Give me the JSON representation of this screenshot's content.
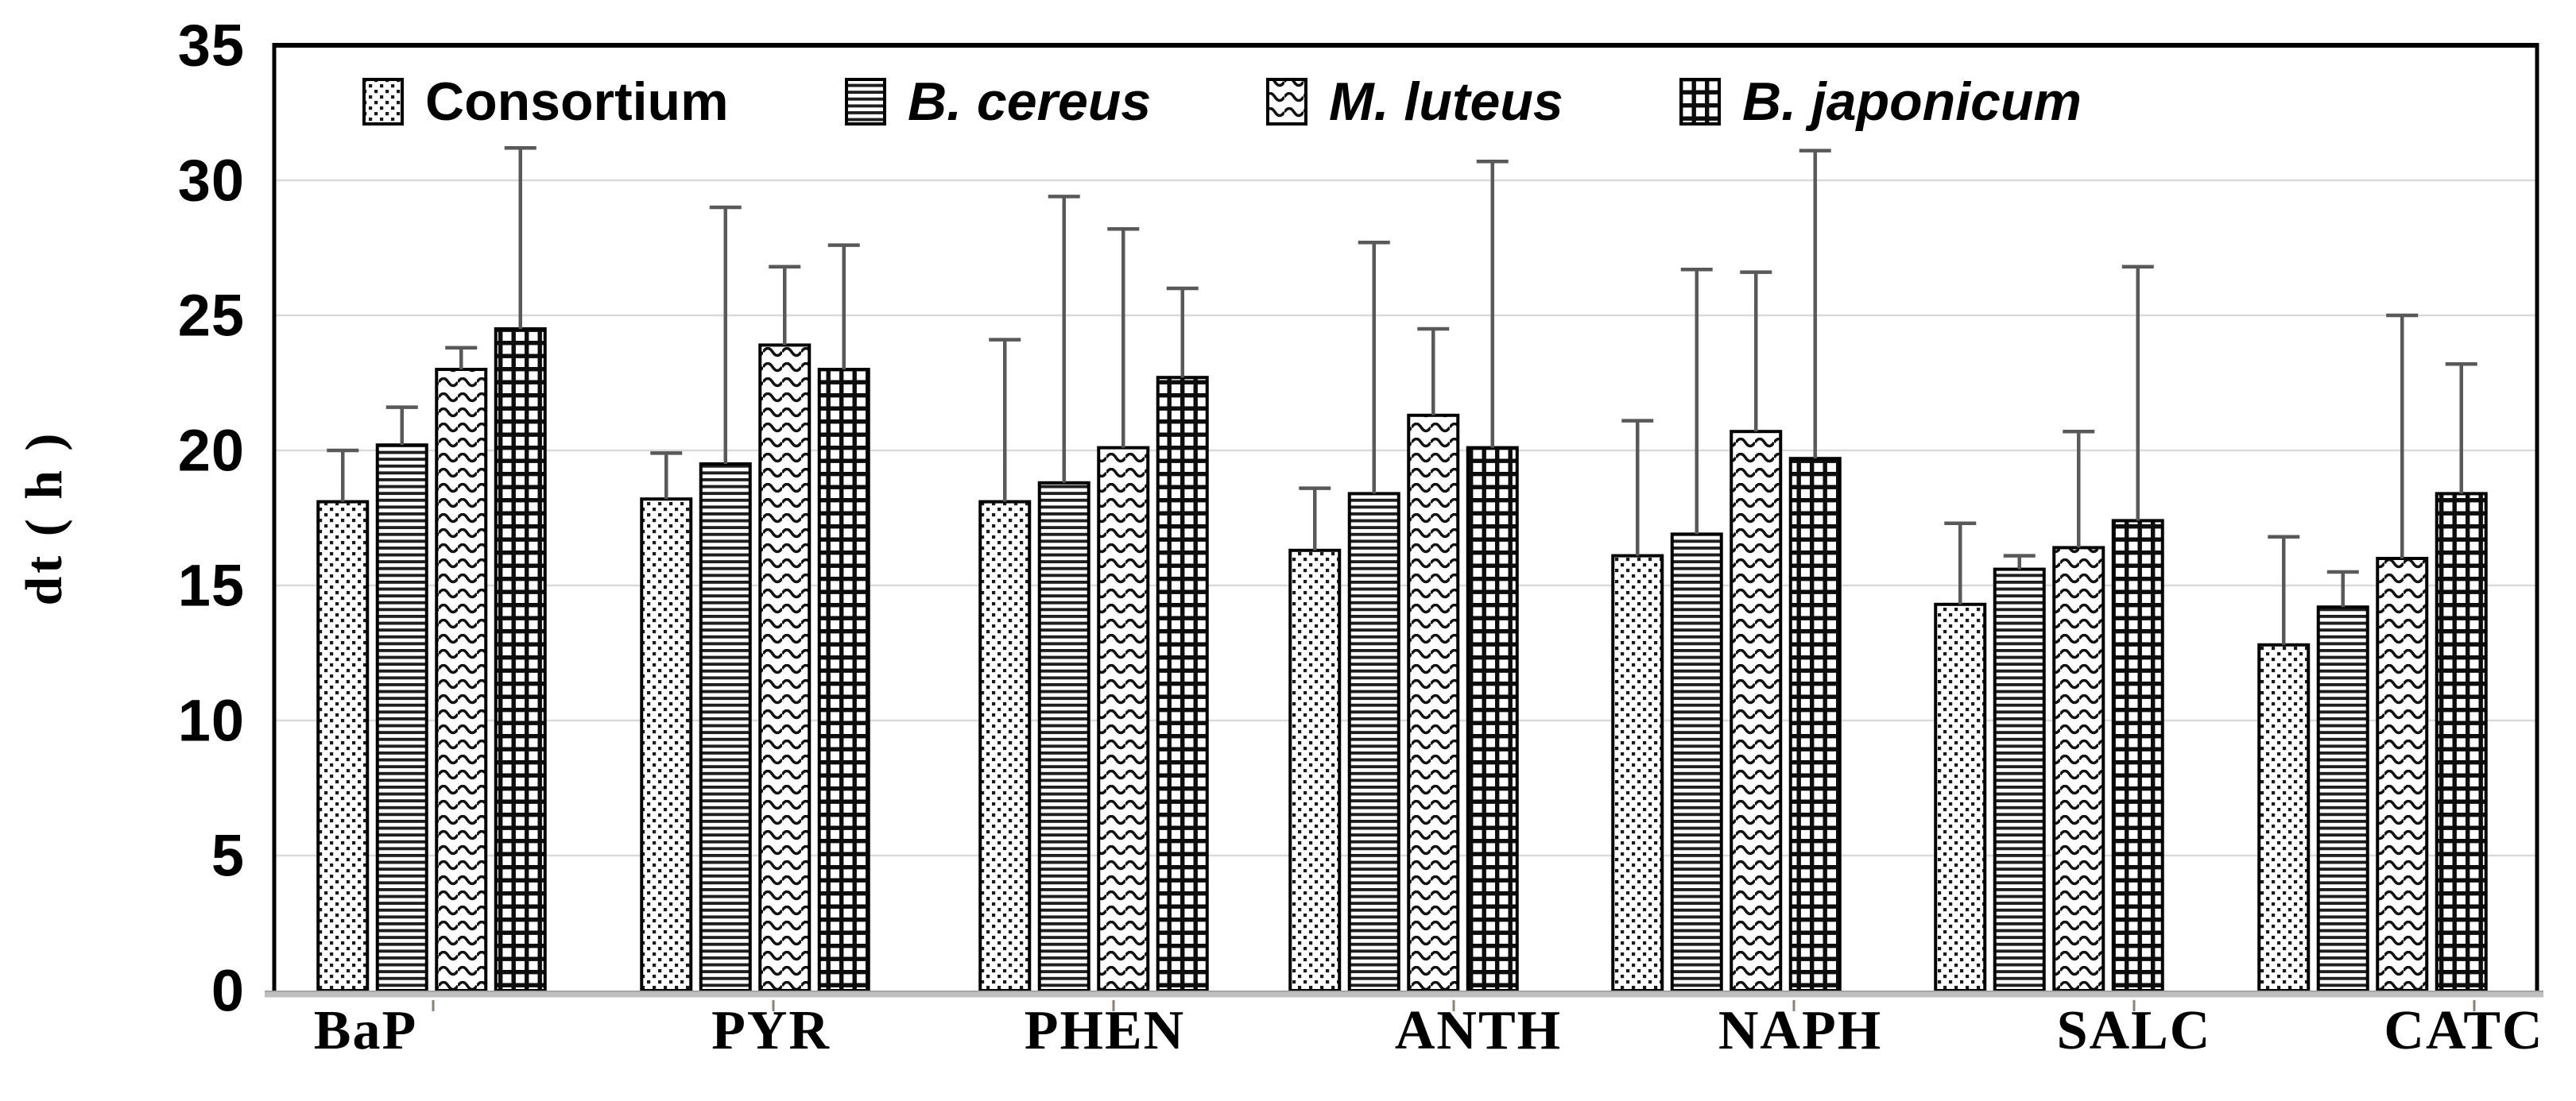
{
  "y_axis": {
    "title": "dt ( h )",
    "ticks": [
      "0",
      "5",
      "10",
      "15",
      "20",
      "25",
      "30",
      "35"
    ],
    "min": 0,
    "max": 35,
    "step": 5
  },
  "legend": [
    {
      "label": "Consortium",
      "italic": false,
      "pattern": "dots"
    },
    {
      "label": "B. cereus",
      "italic": true,
      "pattern": "hlines"
    },
    {
      "label": "M. luteus",
      "italic": true,
      "pattern": "waves"
    },
    {
      "label": "B. japonicum",
      "italic": true,
      "pattern": "grid"
    }
  ],
  "colors": {
    "bar_outline": "#000000",
    "error_bar": "#595959",
    "gridline": "#d9d9d9",
    "axis_border": "#000000",
    "baseline": "#bfbfbf",
    "baseline_edge": "#999999",
    "tick_mark": "#8c8274"
  },
  "chart_data": {
    "type": "bar",
    "title": "",
    "xlabel": "",
    "ylabel": "dt ( h )",
    "ylim": [
      0,
      35
    ],
    "grid": "horizontal",
    "legend_position": "top-inside",
    "error_bars": "upper-only",
    "categories": [
      "BaP",
      "PYR",
      "PHEN",
      "ANTH",
      "NAPH",
      "SALC",
      "CATC"
    ],
    "series": [
      {
        "name": "Consortium",
        "pattern": "dots",
        "values": [
          18.1,
          18.2,
          18.1,
          16.3,
          16.1,
          14.3,
          12.8
        ],
        "errors": [
          1.9,
          1.7,
          6.0,
          2.3,
          5.0,
          3.0,
          4.0
        ]
      },
      {
        "name": "B. cereus",
        "pattern": "hlines",
        "values": [
          20.2,
          19.5,
          18.8,
          18.4,
          16.9,
          15.6,
          14.2
        ],
        "errors": [
          1.4,
          9.5,
          10.6,
          9.3,
          9.8,
          0.5,
          1.3
        ]
      },
      {
        "name": "M. luteus",
        "pattern": "waves",
        "values": [
          23.0,
          23.9,
          20.1,
          21.3,
          20.7,
          16.4,
          16.0
        ],
        "errors": [
          0.8,
          2.9,
          8.1,
          3.2,
          5.9,
          4.3,
          9.0
        ]
      },
      {
        "name": "B. japonicum",
        "pattern": "grid",
        "values": [
          24.5,
          23.0,
          22.7,
          20.1,
          19.7,
          17.4,
          18.4
        ],
        "errors": [
          6.7,
          4.6,
          3.3,
          10.6,
          11.4,
          9.4,
          4.8
        ]
      }
    ]
  }
}
